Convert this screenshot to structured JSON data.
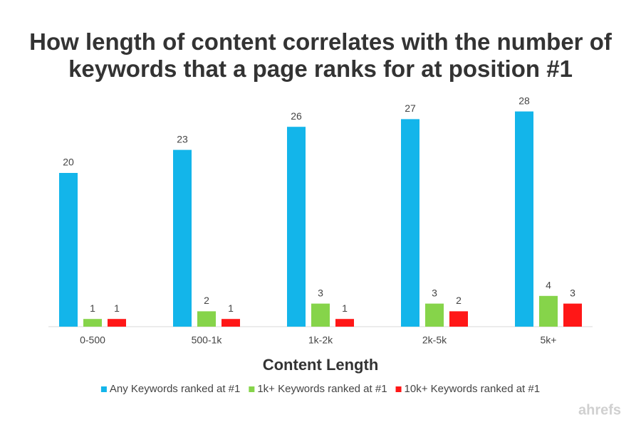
{
  "chart_data": {
    "type": "bar",
    "title": "How length of content correlates with the number of keywords that a page ranks for at position #1",
    "x_label": "Content Length",
    "categories": [
      "0-500",
      "500-1k",
      "1k-2k",
      "2k-5k",
      "5k+"
    ],
    "series": [
      {
        "name": "Any Keywords ranked at #1",
        "color": "#13b5ea",
        "values": [
          20,
          23,
          26,
          27,
          28
        ]
      },
      {
        "name": "1k+ Keywords ranked at #1",
        "color": "#86d44a",
        "values": [
          1,
          2,
          3,
          3,
          4
        ]
      },
      {
        "name": "10k+ Keywords ranked at #1",
        "color": "#ff1717",
        "values": [
          1,
          1,
          1,
          2,
          3
        ]
      }
    ],
    "legend": "bottom",
    "watermark": "ahrefs"
  }
}
